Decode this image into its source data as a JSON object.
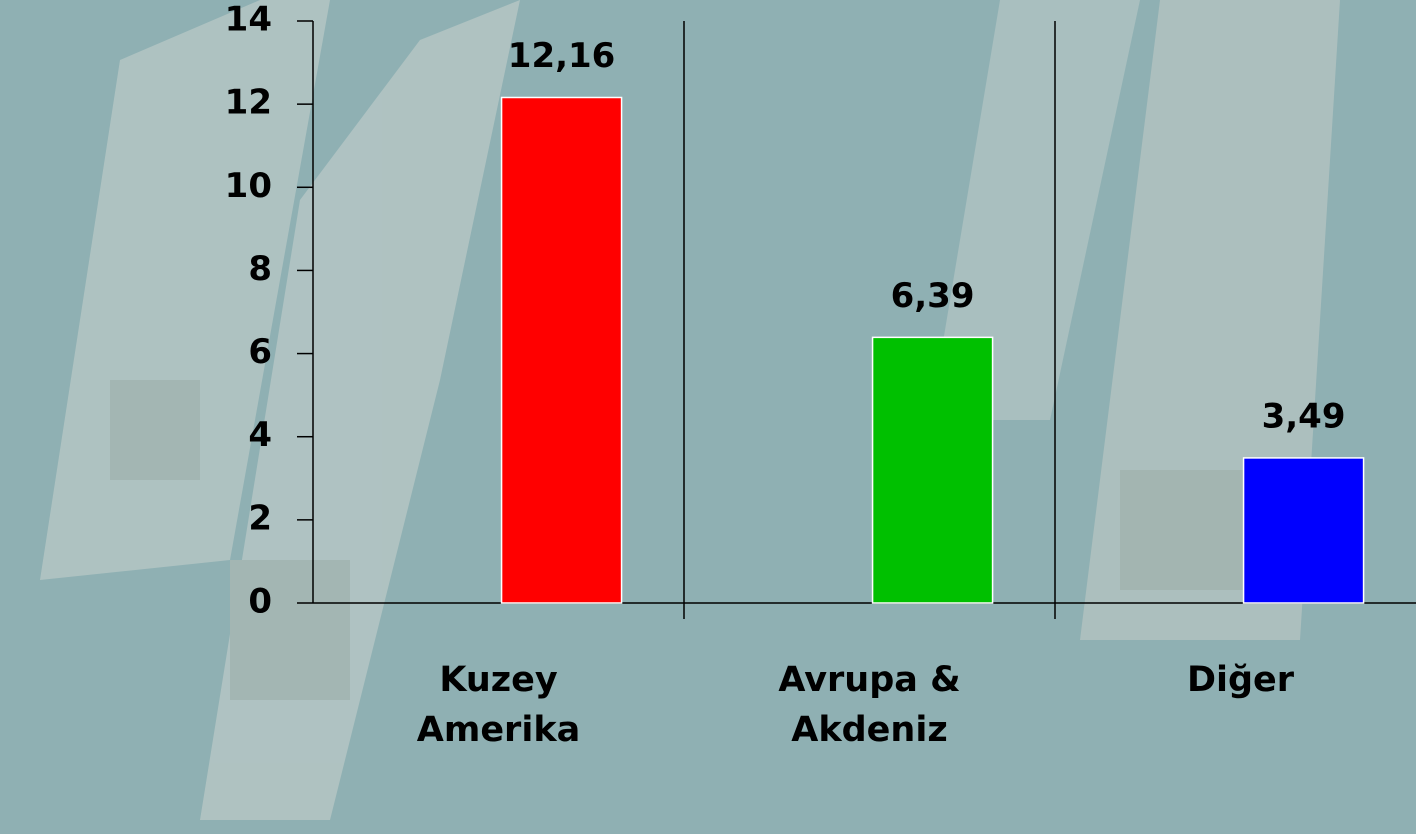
{
  "chart_data": {
    "type": "bar",
    "categories": [
      "Kuzey Amerika",
      "Avrupa & Akdeniz",
      "Diğer"
    ],
    "values": [
      12.16,
      6.39,
      3.49
    ],
    "value_labels": [
      "12,16",
      "6,39",
      "3,49"
    ],
    "colors": [
      "#ff0000",
      "#00c000",
      "#0000ff"
    ],
    "ylim": [
      0,
      14
    ],
    "yticks": [
      0,
      2,
      4,
      6,
      8,
      10,
      12,
      14
    ],
    "grid": false
  }
}
